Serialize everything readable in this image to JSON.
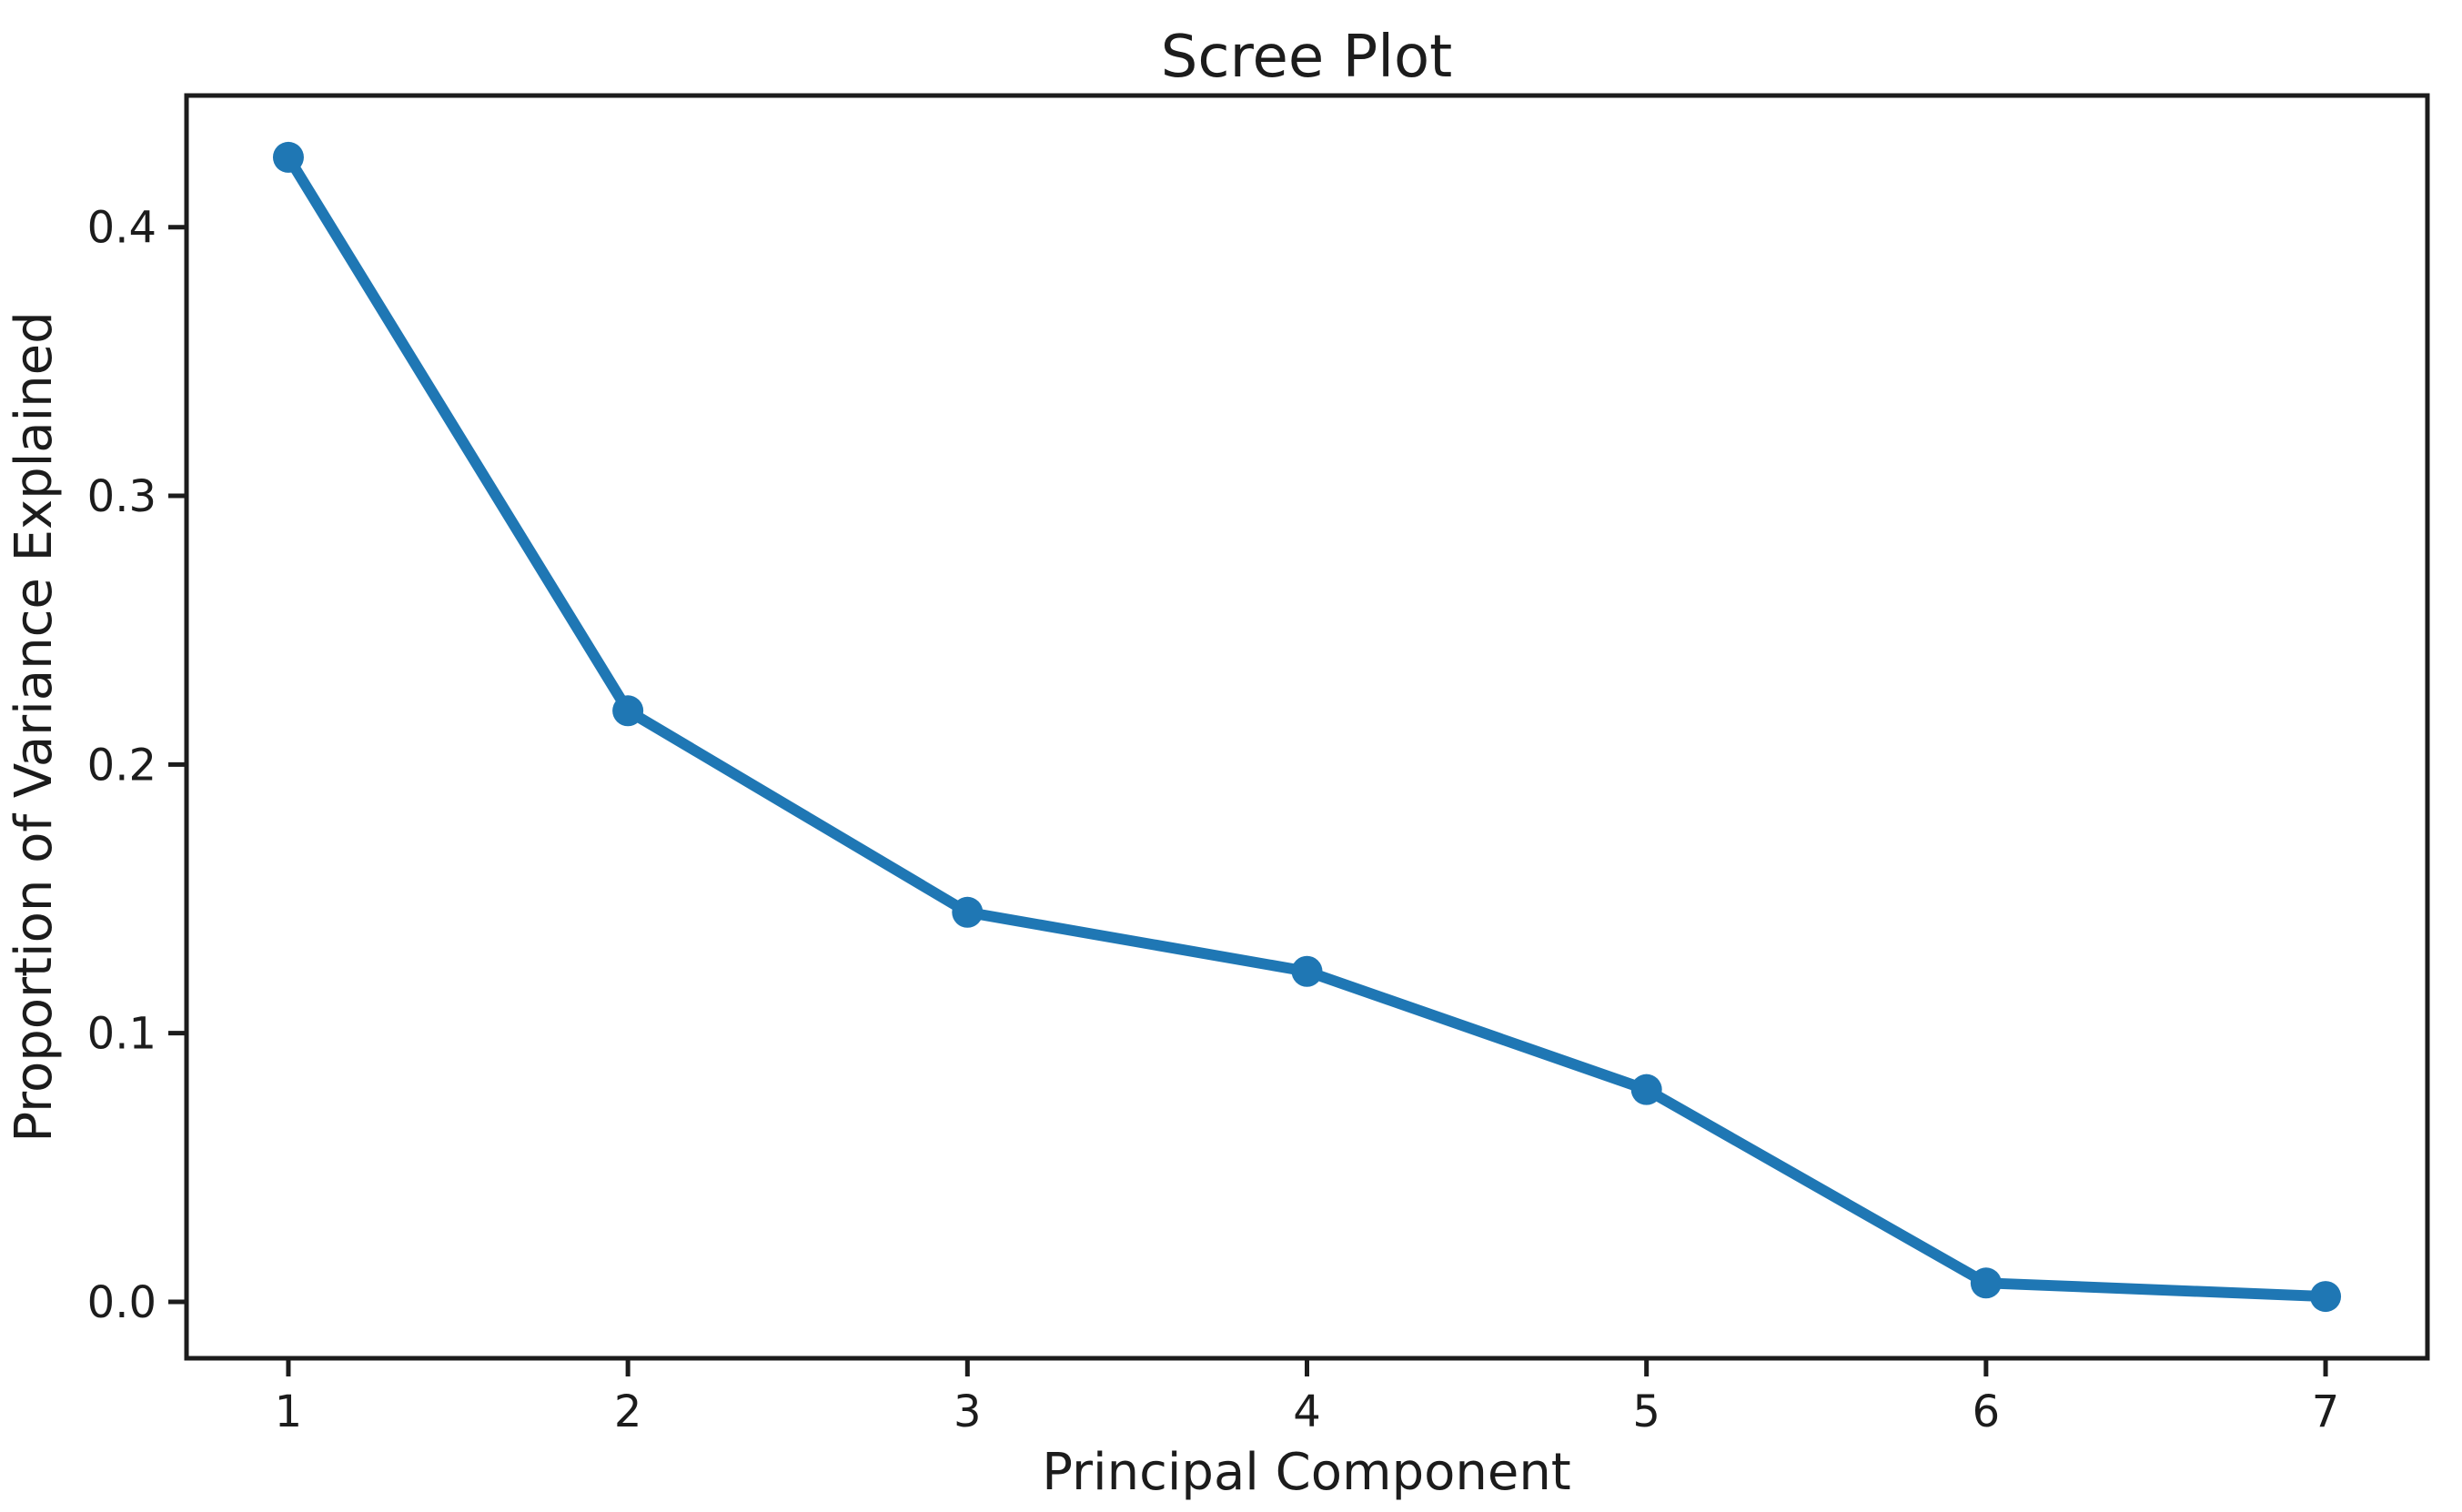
{
  "figure": {
    "background_color": "#ffffff"
  },
  "chart_data": {
    "type": "line",
    "title": "Scree Plot",
    "xlabel": "Principal Component",
    "ylabel": "Proportion of Variance Explained",
    "x": [
      1,
      2,
      3,
      4,
      5,
      6,
      7
    ],
    "values": [
      0.426,
      0.22,
      0.145,
      0.123,
      0.079,
      0.007,
      0.002
    ],
    "series_name": "Proportion of Variance Explained",
    "x_tick_labels": [
      "1",
      "2",
      "3",
      "4",
      "5",
      "6",
      "7"
    ],
    "y_ticks": [
      0.0,
      0.1,
      0.2,
      0.3,
      0.4
    ],
    "y_tick_labels": [
      "0.0",
      "0.1",
      "0.2",
      "0.3",
      "0.4"
    ],
    "xlim": [
      0.7,
      7.3
    ],
    "ylim": [
      -0.021,
      0.449
    ],
    "grid": false,
    "legend_position": "none",
    "line_color": "#1f77b4",
    "marker": "circle",
    "axis_color": "#1c1c1c"
  }
}
